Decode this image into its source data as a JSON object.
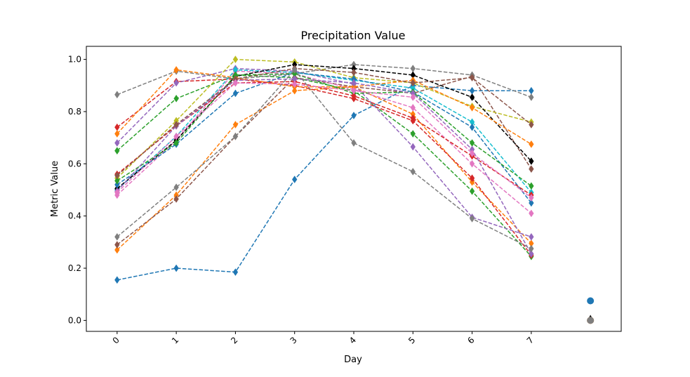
{
  "chart_data": {
    "type": "line",
    "title": "Precipitation Value",
    "xlabel": "Day",
    "ylabel": "Metric Value",
    "xlim": [
      -0.52,
      8.52
    ],
    "ylim": [
      -0.042,
      1.05
    ],
    "x_ticks": [
      0,
      1,
      2,
      3,
      4,
      5,
      6,
      7
    ],
    "x_tick_labels": [
      "0",
      "1",
      "2",
      "3",
      "4",
      "5",
      "6",
      "7"
    ],
    "y_ticks": [
      0.0,
      0.2,
      0.4,
      0.6,
      0.8,
      1.0
    ],
    "y_tick_labels": [
      "0.0",
      "0.2",
      "0.4",
      "0.6",
      "0.8",
      "1.0"
    ],
    "grid": false,
    "legend": false,
    "line_style": "dashed",
    "marker": "diamond",
    "x": [
      0,
      1,
      2,
      3,
      4,
      5,
      6,
      7
    ],
    "series": [
      {
        "color": "#1f77b4",
        "values": [
          0.155,
          0.2,
          0.185,
          0.54,
          0.785,
          0.9,
          0.88,
          0.88
        ]
      },
      {
        "color": "#ff7f0e",
        "values": [
          0.27,
          0.48,
          0.75,
          0.88,
          0.895,
          0.79,
          0.53,
          0.295
        ]
      },
      {
        "color": "#2ca02c",
        "values": [
          0.65,
          0.85,
          0.94,
          0.93,
          0.88,
          0.715,
          0.495,
          0.245
        ]
      },
      {
        "color": "#d62728",
        "values": [
          0.74,
          0.915,
          0.925,
          0.9,
          0.85,
          0.765,
          0.545,
          0.25
        ]
      },
      {
        "color": "#9467bd",
        "values": [
          0.68,
          0.91,
          0.965,
          0.955,
          0.905,
          0.665,
          0.395,
          0.32
        ]
      },
      {
        "color": "#8c564b",
        "values": [
          0.29,
          0.465,
          0.705,
          0.93,
          0.895,
          0.87,
          0.935,
          0.58
        ]
      },
      {
        "color": "#e377c2",
        "values": [
          0.48,
          0.69,
          0.955,
          0.945,
          0.885,
          0.815,
          0.6,
          0.41
        ]
      },
      {
        "color": "#7f7f7f",
        "values": [
          0.865,
          0.955,
          0.925,
          0.945,
          0.98,
          0.965,
          0.94,
          0.855
        ]
      },
      {
        "color": "#bcbd22",
        "values": [
          0.545,
          0.765,
          1.0,
          0.99,
          0.93,
          0.91,
          0.82,
          0.76
        ]
      },
      {
        "color": "#17becf",
        "values": [
          0.5,
          0.705,
          0.96,
          0.95,
          0.92,
          0.89,
          0.76,
          0.49
        ]
      },
      {
        "color": "#000000",
        "values": [
          0.505,
          0.69,
          0.935,
          0.98,
          0.965,
          0.94,
          0.855,
          0.61
        ]
      },
      {
        "color": "#1f77b4",
        "values": [
          0.52,
          0.675,
          0.87,
          0.95,
          0.925,
          0.875,
          0.74,
          0.45
        ]
      },
      {
        "color": "#ff7f0e",
        "values": [
          0.715,
          0.96,
          0.93,
          0.895,
          0.895,
          0.92,
          0.815,
          0.675
        ]
      },
      {
        "color": "#2ca02c",
        "values": [
          0.535,
          0.68,
          0.94,
          0.945,
          0.87,
          0.875,
          0.68,
          0.515
        ]
      },
      {
        "color": "#d62728",
        "values": [
          0.56,
          0.745,
          0.91,
          0.915,
          0.86,
          0.775,
          0.63,
          0.48
        ]
      },
      {
        "color": "#9467bd",
        "values": [
          0.495,
          0.745,
          0.92,
          0.925,
          0.91,
          0.87,
          0.655,
          0.255
        ]
      },
      {
        "color": "#8c564b",
        "values": [
          0.555,
          0.75,
          0.925,
          0.965,
          0.95,
          0.91,
          0.93,
          0.75
        ]
      },
      {
        "color": "#e377c2",
        "values": [
          0.49,
          0.705,
          0.91,
          0.905,
          0.88,
          0.855,
          0.64,
          0.47
        ]
      },
      {
        "color": "#7f7f7f",
        "values": [
          0.32,
          0.51,
          0.705,
          0.96,
          0.68,
          0.57,
          0.39,
          0.275
        ]
      }
    ],
    "extra_points": [
      {
        "color": "#1f77b4",
        "shape": "circle",
        "x": 8,
        "y": 0.075
      },
      {
        "color": "#000000",
        "shape": "triangle",
        "x": 8,
        "y": 0.005
      },
      {
        "color": "#ff7f0e",
        "shape": "circle",
        "x": 8,
        "y": 0.0
      },
      {
        "color": "#7f7f7f",
        "shape": "circle",
        "x": 8,
        "y": 0.0
      }
    ]
  }
}
